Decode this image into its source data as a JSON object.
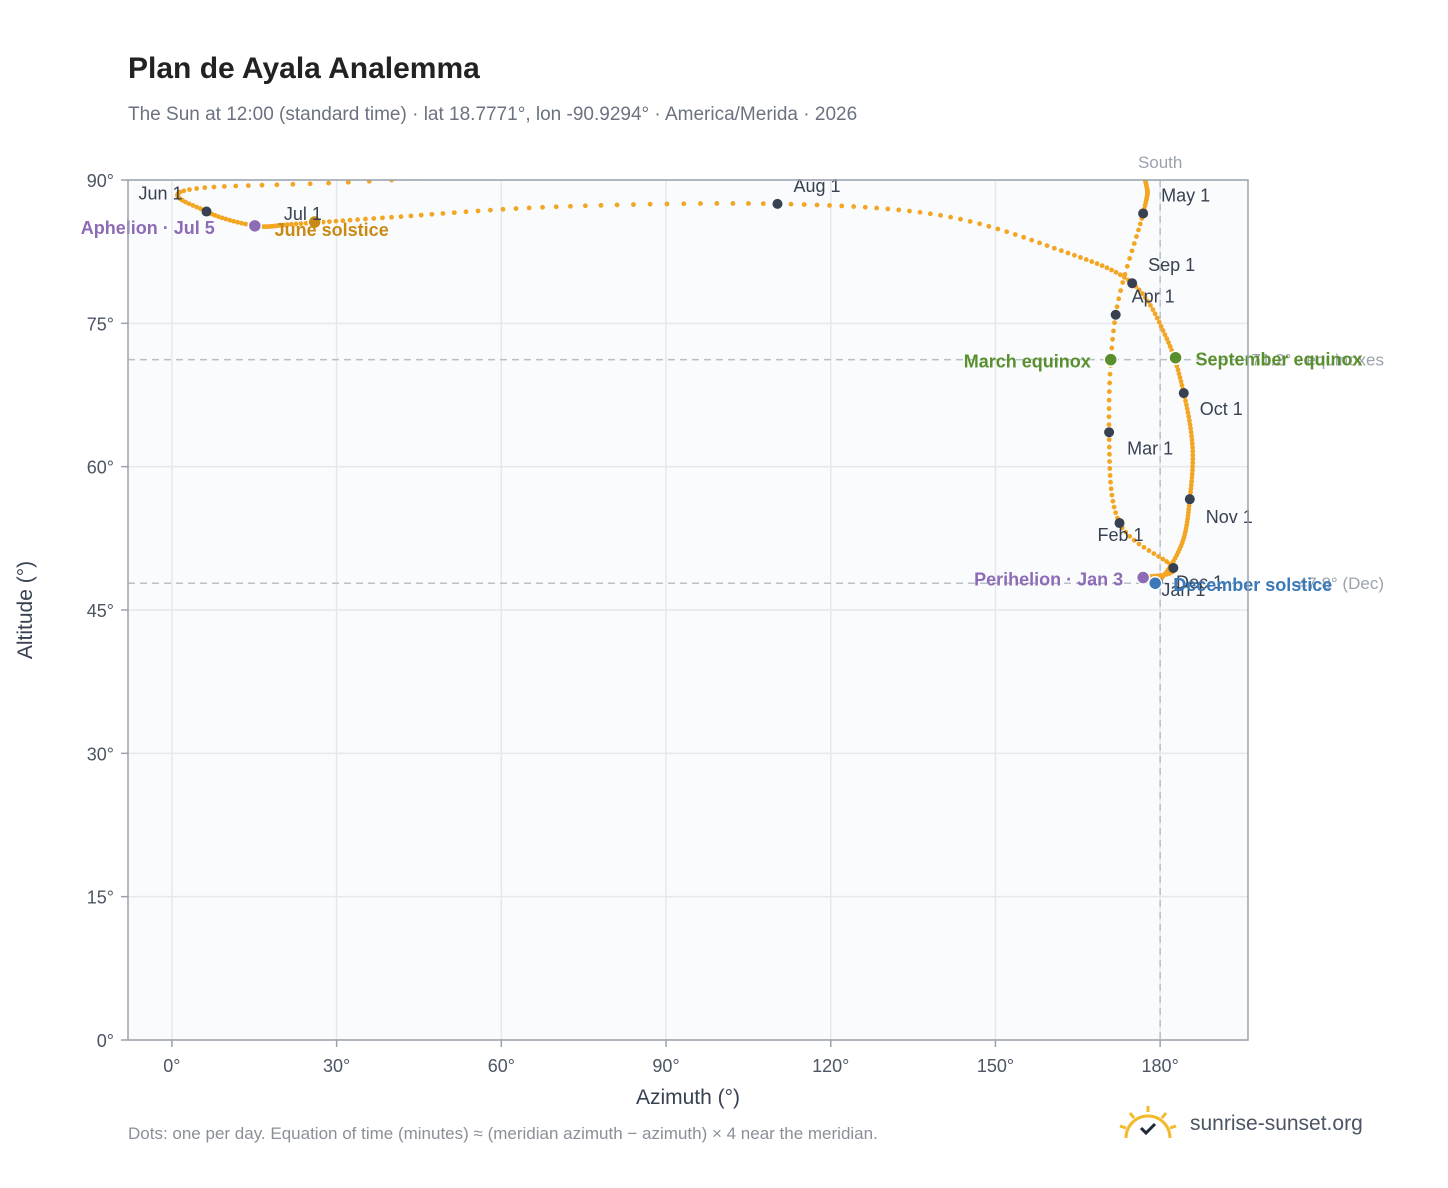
{
  "header": {
    "title": "Plan de Ayala Analemma",
    "subtitle": "The Sun at 12:00 (standard time) · lat 18.7771°, lon -90.9294° · America/Merida · 2026"
  },
  "footer": {
    "note": "Dots: one per day. Equation of time (minutes) ≈ (meridian azimuth − azimuth) × 4 near the meridian.",
    "brand": "sunrise-sunset.org"
  },
  "colors": {
    "curve": "#f2a623",
    "month_marker": "#374151",
    "equinox": "#5a8f2e",
    "solstice_june": "#c98a15",
    "solstice_december": "#3a78b8",
    "apsis": "#8e6bb5",
    "grid": "#e5e8ec",
    "plot_bg": "#f9fbfd",
    "axis_frame": "#9aa3ad",
    "reference": "#b8c0c8"
  },
  "chart_data": {
    "type": "scatter",
    "xlabel": "Azimuth (°)",
    "ylabel": "Altitude (°)",
    "xlim": [
      -8,
      196
    ],
    "ylim": [
      0,
      90
    ],
    "x_ticks": [
      {
        "value": 0,
        "label": "0°"
      },
      {
        "value": 30,
        "label": "30°"
      },
      {
        "value": 60,
        "label": "60°"
      },
      {
        "value": 90,
        "label": "90°"
      },
      {
        "value": 120,
        "label": "120°"
      },
      {
        "value": 150,
        "label": "150°"
      },
      {
        "value": 180,
        "label": "180°"
      }
    ],
    "y_ticks": [
      {
        "value": 0,
        "label": "0°"
      },
      {
        "value": 15,
        "label": "15°"
      },
      {
        "value": 30,
        "label": "30°"
      },
      {
        "value": 45,
        "label": "45°"
      },
      {
        "value": 60,
        "label": "60°"
      },
      {
        "value": 75,
        "label": "75°"
      },
      {
        "value": 90,
        "label": "90°"
      }
    ],
    "grid": true,
    "meridian": {
      "azimuth": 180,
      "label": "South"
    },
    "reference_lines": [
      {
        "altitude": 71.2,
        "label": "71.2° · equinoxes"
      },
      {
        "altitude": 47.8,
        "label": "47.8° (Dec)"
      }
    ],
    "months": [
      {
        "label": "Jan 1",
        "az": 182.4,
        "alt": 49.4
      },
      {
        "label": "Feb 1",
        "az": 172.6,
        "alt": 54.1
      },
      {
        "label": "Mar 1",
        "az": 170.7,
        "alt": 63.6
      },
      {
        "label": "Apr 1",
        "az": 171.9,
        "alt": 75.9
      },
      {
        "label": "May 1",
        "az": 176.9,
        "alt": 86.5
      },
      {
        "label": "Jun 1",
        "az": 6.3,
        "alt": 86.7
      },
      {
        "label": "Jul 1",
        "az": 15.3,
        "alt": 85.2
      },
      {
        "label": "Aug 1",
        "az": 110.3,
        "alt": 87.5
      },
      {
        "label": "Sep 1",
        "az": 174.9,
        "alt": 79.2
      },
      {
        "label": "Oct 1",
        "az": 184.3,
        "alt": 67.7
      },
      {
        "label": "Nov 1",
        "az": 185.4,
        "alt": 56.6
      },
      {
        "label": "Dec 1",
        "az": 179.6,
        "alt": 47.9
      }
    ],
    "events": [
      {
        "label": "March equinox",
        "az": 171.0,
        "alt": 71.2,
        "kind": "equinox"
      },
      {
        "label": "September equinox",
        "az": 182.8,
        "alt": 71.4,
        "kind": "equinox"
      },
      {
        "label": "June solstice",
        "az": 26.0,
        "alt": 85.6,
        "kind": "solstice_june"
      },
      {
        "label": "December solstice",
        "az": 179.1,
        "alt": 47.8,
        "kind": "solstice_december"
      },
      {
        "label": "Perihelion · Jan 3",
        "az": 176.9,
        "alt": 48.4,
        "kind": "apsis"
      },
      {
        "label": "Aphelion · Jul 5",
        "az": 15.1,
        "alt": 85.2,
        "kind": "apsis"
      }
    ]
  }
}
